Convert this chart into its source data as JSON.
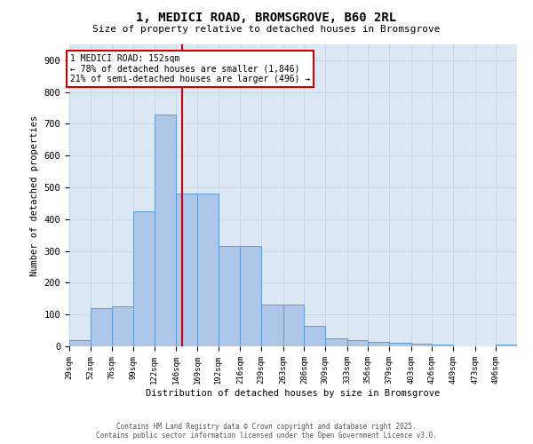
{
  "title": "1, MEDICI ROAD, BROMSGROVE, B60 2RL",
  "subtitle": "Size of property relative to detached houses in Bromsgrove",
  "xlabel": "Distribution of detached houses by size in Bromsgrove",
  "ylabel": "Number of detached properties",
  "bar_values": [
    20,
    120,
    125,
    425,
    730,
    480,
    480,
    315,
    315,
    130,
    130,
    65,
    25,
    20,
    15,
    10,
    7,
    5,
    0,
    0,
    5
  ],
  "bin_edges": [
    29,
    52,
    76,
    99,
    122,
    146,
    169,
    192,
    216,
    239,
    263,
    286,
    309,
    333,
    356,
    379,
    403,
    426,
    449,
    473,
    496
  ],
  "bar_color": "#aec6e8",
  "bar_edge_color": "#5b9bd5",
  "vline_x": 152,
  "vline_color": "#cc0000",
  "annotation_title": "1 MEDICI ROAD: 152sqm",
  "annotation_line1": "← 78% of detached houses are smaller (1,846)",
  "annotation_line2": "21% of semi-detached houses are larger (496) →",
  "annotation_box_color": "#ffffff",
  "annotation_box_edge": "#cc0000",
  "grid_color": "#c8d8e8",
  "bg_color": "#dce9f5",
  "ylim": [
    0,
    950
  ],
  "yticks": [
    0,
    100,
    200,
    300,
    400,
    500,
    600,
    700,
    800,
    900
  ],
  "footer1": "Contains HM Land Registry data © Crown copyright and database right 2025.",
  "footer2": "Contains public sector information licensed under the Open Government Licence v3.0."
}
